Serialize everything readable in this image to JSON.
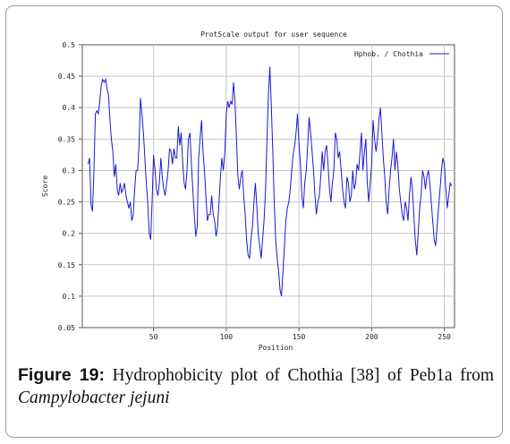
{
  "chart_data": {
    "type": "line",
    "title": "ProtScale output for user sequence",
    "xlabel": "Position",
    "ylabel": "Score",
    "xlim": [
      1,
      257
    ],
    "ylim": [
      0.05,
      0.5
    ],
    "x_ticks": [
      "50",
      "100",
      "150",
      "200",
      "250"
    ],
    "y_ticks": [
      "0.05",
      "0.1",
      "0.15",
      "0.2",
      "0.25",
      "0.3",
      "0.35",
      "0.4",
      "0.45",
      "0.5"
    ],
    "grid": true,
    "legend_position": "top-right",
    "series": [
      {
        "name": "Hphob. / Chothia",
        "color": "#1a1ad0",
        "points": [
          [
            5,
            0.31
          ],
          [
            6,
            0.32
          ],
          [
            7,
            0.245
          ],
          [
            8,
            0.235
          ],
          [
            9,
            0.3
          ],
          [
            10,
            0.39
          ],
          [
            11,
            0.395
          ],
          [
            12,
            0.39
          ],
          [
            13,
            0.41
          ],
          [
            14,
            0.435
          ],
          [
            15,
            0.445
          ],
          [
            16,
            0.44
          ],
          [
            17,
            0.445
          ],
          [
            18,
            0.43
          ],
          [
            19,
            0.42
          ],
          [
            20,
            0.38
          ],
          [
            21,
            0.35
          ],
          [
            22,
            0.33
          ],
          [
            23,
            0.29
          ],
          [
            24,
            0.31
          ],
          [
            25,
            0.27
          ],
          [
            26,
            0.26
          ],
          [
            27,
            0.28
          ],
          [
            28,
            0.265
          ],
          [
            29,
            0.27
          ],
          [
            30,
            0.28
          ],
          [
            31,
            0.26
          ],
          [
            32,
            0.25
          ],
          [
            33,
            0.24
          ],
          [
            34,
            0.25
          ],
          [
            35,
            0.22
          ],
          [
            36,
            0.23
          ],
          [
            37,
            0.27
          ],
          [
            38,
            0.3
          ],
          [
            39,
            0.3
          ],
          [
            40,
            0.34
          ],
          [
            41,
            0.415
          ],
          [
            42,
            0.39
          ],
          [
            43,
            0.36
          ],
          [
            44,
            0.32
          ],
          [
            45,
            0.28
          ],
          [
            46,
            0.25
          ],
          [
            47,
            0.2
          ],
          [
            48,
            0.19
          ],
          [
            49,
            0.25
          ],
          [
            50,
            0.325
          ],
          [
            51,
            0.3
          ],
          [
            52,
            0.27
          ],
          [
            53,
            0.26
          ],
          [
            54,
            0.28
          ],
          [
            55,
            0.32
          ],
          [
            56,
            0.29
          ],
          [
            57,
            0.27
          ],
          [
            58,
            0.26
          ],
          [
            59,
            0.28
          ],
          [
            60,
            0.3
          ],
          [
            61,
            0.335
          ],
          [
            62,
            0.33
          ],
          [
            63,
            0.31
          ],
          [
            64,
            0.335
          ],
          [
            65,
            0.32
          ],
          [
            66,
            0.32
          ],
          [
            67,
            0.37
          ],
          [
            68,
            0.34
          ],
          [
            69,
            0.36
          ],
          [
            70,
            0.315
          ],
          [
            71,
            0.28
          ],
          [
            72,
            0.27
          ],
          [
            73,
            0.3
          ],
          [
            74,
            0.35
          ],
          [
            75,
            0.36
          ],
          [
            76,
            0.31
          ],
          [
            77,
            0.27
          ],
          [
            78,
            0.23
          ],
          [
            79,
            0.195
          ],
          [
            80,
            0.21
          ],
          [
            81,
            0.32
          ],
          [
            82,
            0.35
          ],
          [
            83,
            0.38
          ],
          [
            84,
            0.33
          ],
          [
            85,
            0.3
          ],
          [
            86,
            0.26
          ],
          [
            87,
            0.22
          ],
          [
            88,
            0.23
          ],
          [
            89,
            0.23
          ],
          [
            90,
            0.26
          ],
          [
            91,
            0.23
          ],
          [
            92,
            0.22
          ],
          [
            93,
            0.195
          ],
          [
            94,
            0.21
          ],
          [
            95,
            0.25
          ],
          [
            96,
            0.29
          ],
          [
            97,
            0.32
          ],
          [
            98,
            0.3
          ],
          [
            99,
            0.33
          ],
          [
            100,
            0.39
          ],
          [
            101,
            0.41
          ],
          [
            102,
            0.4
          ],
          [
            103,
            0.41
          ],
          [
            104,
            0.405
          ],
          [
            105,
            0.44
          ],
          [
            106,
            0.41
          ],
          [
            107,
            0.35
          ],
          [
            108,
            0.29
          ],
          [
            109,
            0.27
          ],
          [
            110,
            0.29
          ],
          [
            111,
            0.3
          ],
          [
            112,
            0.26
          ],
          [
            113,
            0.23
          ],
          [
            114,
            0.19
          ],
          [
            115,
            0.165
          ],
          [
            116,
            0.16
          ],
          [
            117,
            0.19
          ],
          [
            118,
            0.21
          ],
          [
            119,
            0.25
          ],
          [
            120,
            0.28
          ],
          [
            121,
            0.245
          ],
          [
            122,
            0.2
          ],
          [
            123,
            0.18
          ],
          [
            124,
            0.16
          ],
          [
            125,
            0.19
          ],
          [
            126,
            0.22
          ],
          [
            127,
            0.27
          ],
          [
            128,
            0.35
          ],
          [
            129,
            0.42
          ],
          [
            130,
            0.465
          ],
          [
            131,
            0.4
          ],
          [
            132,
            0.33
          ],
          [
            133,
            0.25
          ],
          [
            134,
            0.19
          ],
          [
            135,
            0.16
          ],
          [
            136,
            0.14
          ],
          [
            137,
            0.11
          ],
          [
            138,
            0.1
          ],
          [
            139,
            0.14
          ],
          [
            140,
            0.18
          ],
          [
            141,
            0.22
          ],
          [
            142,
            0.24
          ],
          [
            143,
            0.25
          ],
          [
            144,
            0.27
          ],
          [
            145,
            0.3
          ],
          [
            146,
            0.325
          ],
          [
            147,
            0.34
          ],
          [
            148,
            0.36
          ],
          [
            149,
            0.39
          ],
          [
            150,
            0.345
          ],
          [
            151,
            0.31
          ],
          [
            152,
            0.26
          ],
          [
            153,
            0.24
          ],
          [
            154,
            0.28
          ],
          [
            155,
            0.3
          ],
          [
            156,
            0.34
          ],
          [
            157,
            0.385
          ],
          [
            158,
            0.36
          ],
          [
            159,
            0.33
          ],
          [
            160,
            0.3
          ],
          [
            161,
            0.26
          ],
          [
            162,
            0.23
          ],
          [
            163,
            0.25
          ],
          [
            164,
            0.26
          ],
          [
            165,
            0.29
          ],
          [
            166,
            0.33
          ],
          [
            167,
            0.3
          ],
          [
            168,
            0.33
          ],
          [
            169,
            0.34
          ],
          [
            170,
            0.31
          ],
          [
            171,
            0.27
          ],
          [
            172,
            0.25
          ],
          [
            173,
            0.28
          ],
          [
            174,
            0.3
          ],
          [
            175,
            0.36
          ],
          [
            176,
            0.35
          ],
          [
            177,
            0.32
          ],
          [
            178,
            0.33
          ],
          [
            179,
            0.3
          ],
          [
            180,
            0.27
          ],
          [
            181,
            0.25
          ],
          [
            182,
            0.24
          ],
          [
            183,
            0.29
          ],
          [
            184,
            0.28
          ],
          [
            185,
            0.25
          ],
          [
            186,
            0.26
          ],
          [
            187,
            0.3
          ],
          [
            188,
            0.27
          ],
          [
            189,
            0.28
          ],
          [
            190,
            0.31
          ],
          [
            191,
            0.3
          ],
          [
            192,
            0.33
          ],
          [
            193,
            0.36
          ],
          [
            194,
            0.3
          ],
          [
            195,
            0.33
          ],
          [
            196,
            0.35
          ],
          [
            197,
            0.28
          ],
          [
            198,
            0.25
          ],
          [
            199,
            0.28
          ],
          [
            200,
            0.31
          ],
          [
            201,
            0.38
          ],
          [
            202,
            0.35
          ],
          [
            203,
            0.33
          ],
          [
            204,
            0.35
          ],
          [
            205,
            0.38
          ],
          [
            206,
            0.4
          ],
          [
            207,
            0.36
          ],
          [
            208,
            0.32
          ],
          [
            209,
            0.29
          ],
          [
            210,
            0.25
          ],
          [
            211,
            0.23
          ],
          [
            212,
            0.27
          ],
          [
            213,
            0.3
          ],
          [
            214,
            0.32
          ],
          [
            215,
            0.35
          ],
          [
            216,
            0.3
          ],
          [
            217,
            0.33
          ],
          [
            218,
            0.31
          ],
          [
            219,
            0.27
          ],
          [
            220,
            0.25
          ],
          [
            221,
            0.23
          ],
          [
            222,
            0.22
          ],
          [
            223,
            0.25
          ],
          [
            224,
            0.24
          ],
          [
            225,
            0.22
          ],
          [
            226,
            0.26
          ],
          [
            227,
            0.29
          ],
          [
            228,
            0.27
          ],
          [
            229,
            0.23
          ],
          [
            230,
            0.19
          ],
          [
            231,
            0.165
          ],
          [
            232,
            0.2
          ],
          [
            233,
            0.24
          ],
          [
            234,
            0.26
          ],
          [
            235,
            0.3
          ],
          [
            236,
            0.29
          ],
          [
            237,
            0.27
          ],
          [
            238,
            0.29
          ],
          [
            239,
            0.3
          ],
          [
            240,
            0.28
          ],
          [
            241,
            0.25
          ],
          [
            242,
            0.22
          ],
          [
            243,
            0.19
          ],
          [
            244,
            0.18
          ],
          [
            245,
            0.21
          ],
          [
            246,
            0.24
          ],
          [
            247,
            0.27
          ],
          [
            248,
            0.3
          ],
          [
            249,
            0.32
          ],
          [
            250,
            0.31
          ],
          [
            251,
            0.27
          ],
          [
            252,
            0.24
          ],
          [
            253,
            0.26
          ],
          [
            254,
            0.28
          ],
          [
            255,
            0.275
          ]
        ]
      }
    ]
  },
  "caption": {
    "figure_label": "Figure 19:",
    "text": " Hydrophobicity plot of Chothia [38] of Peb1a from",
    "organism": "Campylobacter jejuni"
  }
}
